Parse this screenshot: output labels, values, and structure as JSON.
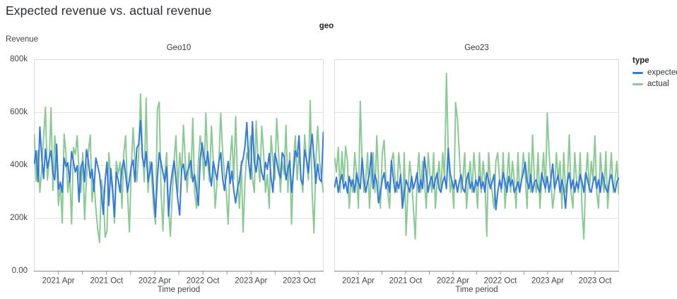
{
  "page_title": "Expected revenue vs. actual revenue",
  "colors": {
    "expected": "#3579de",
    "actual": "#8bca95",
    "grid": "#e3e3e3",
    "panel_border": "#dcdcdc",
    "axis_line": "#8a8a8a",
    "tick_mark": "#9a9a9a",
    "tick_label": "#42464b",
    "background": "#ffffff"
  },
  "legend": {
    "title": "type",
    "items": [
      {
        "label": "expected",
        "color_key": "expected"
      },
      {
        "label": "actual",
        "color_key": "actual"
      }
    ]
  },
  "chart_data": {
    "type": "line",
    "facet_field": "geo",
    "facet_title": "geo",
    "y_axis_title": "Revenue",
    "x_axis_title": "Time period",
    "x_domain": [
      "2021-01",
      "2023-12"
    ],
    "x_frequency": "weekly",
    "values_unit": "thousands (k)",
    "ylim": [
      0,
      800
    ],
    "grid": true,
    "legend_position": "right",
    "y_ticks": [
      {
        "v": 0,
        "label": "0.00"
      },
      {
        "v": 200,
        "label": "200k"
      },
      {
        "v": 400,
        "label": "400k"
      },
      {
        "v": 600,
        "label": "600k"
      },
      {
        "v": 800,
        "label": "800k"
      }
    ],
    "x_ticks": [
      {
        "f": 0.0833,
        "label": "2021 Apr"
      },
      {
        "f": 0.1667,
        "label": ""
      },
      {
        "f": 0.25,
        "label": "2021 Oct"
      },
      {
        "f": 0.3333,
        "label": ""
      },
      {
        "f": 0.4167,
        "label": "2022 Apr"
      },
      {
        "f": 0.5,
        "label": ""
      },
      {
        "f": 0.5833,
        "label": "2022 Oct"
      },
      {
        "f": 0.6667,
        "label": ""
      },
      {
        "f": 0.75,
        "label": "2023 Apr"
      },
      {
        "f": 0.8333,
        "label": ""
      },
      {
        "f": 0.9167,
        "label": "2023 Oct"
      }
    ],
    "panels": [
      {
        "label": "Geo10",
        "series": [
          {
            "name": "expected",
            "values": [
              408,
              455,
              338,
              545,
              430,
              350,
              462,
              390,
              425,
              455,
              370,
              345,
              480,
              310,
              335,
              298,
              428,
              395,
              410,
              336,
              452,
              415,
              375,
              398,
              262,
              395,
              415,
              338,
              460,
              418,
              352,
              385,
              302,
              428,
              398,
              365,
              295,
              215,
              345,
              412,
              248,
              388,
              315,
              205,
              375,
              345,
              298,
              388,
              420,
              365,
              298,
              345,
              395,
              420,
              338,
              465,
              480,
              570,
              430,
              395,
              452,
              338,
              375,
              412,
              298,
              205,
              352,
              448,
              412,
              372,
              338,
              395,
              208,
              315,
              375,
              418,
              345,
              268,
              212,
              385,
              405,
              345,
              372,
              395,
              418,
              338,
              365,
              305,
              248,
              425,
              485,
              430,
              398,
              452,
              375,
              322,
              415,
              378,
              345,
              412,
              448,
              352,
              305,
              365,
              415,
              332,
              378,
              305,
              258,
              312,
              345,
              398,
              425,
              472,
              562,
              410,
              348,
              565,
              412,
              375,
              442,
              418,
              372,
              345,
              412,
              385,
              445,
              352,
              298,
              445,
              418,
              375,
              352,
              448,
              432,
              345,
              385,
              418,
              298,
              375,
              455,
              432,
              512,
              345,
              328,
              458,
              422,
              372,
              455,
              518,
              428,
              332,
              405,
              348,
              338,
              525
            ]
          },
          {
            "name": "actual",
            "values": [
              515,
              340,
              455,
              298,
              388,
              510,
              620,
              345,
              412,
              618,
              305,
              512,
              415,
              248,
              338,
              182,
              518,
              445,
              298,
              365,
              178,
              468,
              442,
              512,
              380,
              298,
              448,
              195,
              352,
              448,
              515,
              262,
              345,
              238,
              162,
              108,
              345,
              298,
              128,
              152,
              448,
              352,
              298,
              182,
              415,
              368,
              412,
              238,
              448,
              512,
              298,
              148,
              388,
              542,
              415,
              338,
              445,
              670,
              455,
              338,
              655,
              298,
              415,
              352,
              238,
              178,
              612,
              640,
              298,
              152,
              365,
              448,
              238,
              132,
              298,
              415,
              512,
              298,
              448,
              365,
              552,
              415,
              298,
              448,
              352,
              578,
              298,
              238,
              415,
              512,
              448,
              345,
              598,
              415,
              338,
              548,
              415,
              238,
              338,
              415,
              598,
              452,
              365,
              298,
              178,
              415,
              512,
              348,
              585,
              338,
              238,
              415,
              148,
              338,
              448,
              415,
              512,
              352,
              298,
              568,
              415,
              338,
              548,
              445,
              298,
              365,
              238,
              512,
              415,
              345,
              578,
              448,
              298,
              415,
              365,
              552,
              298,
              448,
              178,
              415,
              512,
              345,
              448,
              365,
              298,
              515,
              415,
              345,
              645,
              298,
              145,
              415,
              548,
              415,
              352,
              298
            ]
          }
        ]
      },
      {
        "label": "Geo23",
        "series": [
          {
            "name": "expected",
            "values": [
              318,
              355,
              298,
              342,
              365,
              312,
              338,
              295,
              358,
              322,
              345,
              298,
              372,
              335,
              312,
              428,
              345,
              298,
              338,
              365,
              448,
              312,
              365,
              338,
              258,
              298,
              345,
              372,
              312,
              338,
              298,
              418,
              352,
              298,
              338,
              312,
              365,
              238,
              298,
              345,
              322,
              298,
              358,
              312,
              338,
              372,
              298,
              345,
              312,
              432,
              365,
              298,
              338,
              358,
              312,
              345,
              372,
              312,
              298,
              338,
              358,
              312,
              465,
              372,
              338,
              312,
              345,
              298,
              338,
              365,
              312,
              298,
              345,
              372,
              312,
              338,
              298,
              345,
              322,
              358,
              312,
              338,
              298,
              372,
              345,
              312,
              338,
              365,
              232,
              298,
              345,
              312,
              372,
              338,
              298,
              358,
              322,
              345,
              298,
              312,
              338,
              298,
              345,
              372,
              412,
              338,
              312,
              365,
              298,
              338,
              345,
              312,
              298,
              372,
              338,
              312,
              358,
              298,
              345,
              405,
              312,
              338,
              365,
              298,
              345,
              312,
              238,
              338,
              372,
              312,
              345,
              298,
              338,
              312,
              365,
              338,
              298,
              372,
              345,
              312,
              298,
              338,
              358,
              312,
              345,
              298,
              372,
              338,
              312,
              298,
              345,
              365,
              322,
              298,
              338,
              352
            ]
          },
          {
            "name": "actual",
            "values": [
              428,
              375,
              468,
              298,
              452,
              338,
              472,
              415,
              238,
              345,
              298,
              448,
              365,
              238,
              642,
              415,
              298,
              345,
              448,
              238,
              365,
              448,
              298,
              512,
              345,
              238,
              448,
              495,
              345,
              298,
              238,
              415,
              448,
              345,
              298,
              448,
              365,
              238,
              448,
              135,
              298,
              415,
              345,
              238,
              122,
              345,
              448,
              298,
              415,
              345,
              238,
              448,
              365,
              298,
              448,
              238,
              345,
              415,
              298,
              448,
              345,
              748,
              452,
              298,
              345,
              238,
              638,
              575,
              448,
              298,
              345,
              448,
              238,
              345,
              415,
              298,
              448,
              345,
              238,
              448,
              298,
              415,
              345,
              132,
              448,
              345,
              298,
              238,
              415,
              448,
              345,
              298,
              448,
              238,
              345,
              448,
              298,
              415,
              345,
              238,
              448,
              298,
              345,
              448,
              365,
              238,
              448,
              298,
              515,
              345,
              298,
              448,
              238,
              345,
              448,
              298,
              598,
              448,
              345,
              238,
              298,
              448,
              345,
              415,
              238,
              448,
              298,
              345,
              515,
              298,
              238,
              448,
              345,
              298,
              448,
              238,
              122,
              345,
              448,
              298,
              415,
              345,
              512,
              298,
              238,
              448,
              345,
              298,
              452,
              238,
              345,
              448,
              298,
              345,
              415,
              292
            ]
          }
        ]
      }
    ]
  }
}
